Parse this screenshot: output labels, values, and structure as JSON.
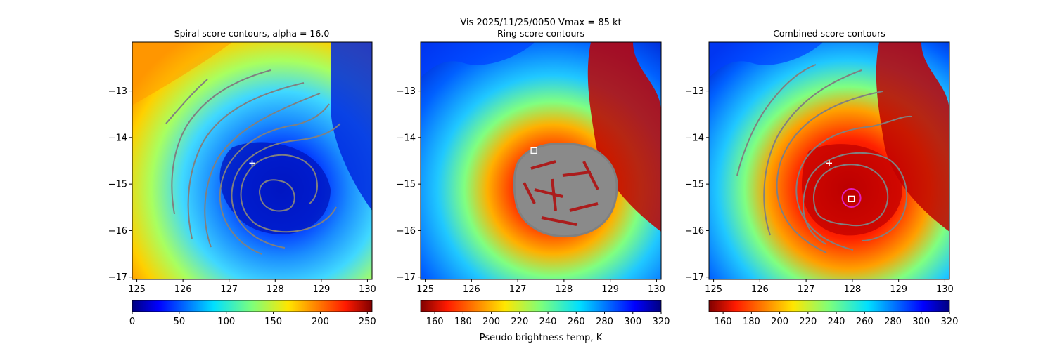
{
  "suptitle": "Vis  2025/11/25/0050    Vmax = 85 kt",
  "colorbar_label": "Pseudo brightness temp, K",
  "chart_data": [
    {
      "type": "heatmap",
      "title": "Spiral score contours, alpha = 16.0",
      "xlim": [
        124.9,
        130.1
      ],
      "ylim": [
        -17.05,
        -11.95
      ],
      "xticks": [
        "125",
        "126",
        "127",
        "128",
        "129",
        "130"
      ],
      "yticks": [
        "−13",
        "−14",
        "−15",
        "−16",
        "−17"
      ],
      "colorbar": {
        "cmap": "jet",
        "range": [
          0,
          255
        ],
        "ticks": [
          "0",
          "50",
          "100",
          "150",
          "200",
          "250"
        ]
      },
      "markers": [
        {
          "kind": "plus",
          "x": 127.5,
          "y": -14.55,
          "color": "#ffffff"
        }
      ],
      "contour_color": "#808080"
    },
    {
      "type": "heatmap",
      "title": "Ring score contours",
      "xlim": [
        124.9,
        130.1
      ],
      "ylim": [
        -17.05,
        -11.95
      ],
      "xticks": [
        "125",
        "126",
        "127",
        "128",
        "129",
        "130"
      ],
      "yticks": [
        "−13",
        "−14",
        "−15",
        "−16",
        "−17"
      ],
      "colorbar": {
        "cmap": "jet_r",
        "range": [
          150,
          320
        ],
        "ticks": [
          "160",
          "180",
          "200",
          "220",
          "240",
          "260",
          "280",
          "300",
          "320"
        ]
      },
      "markers": [
        {
          "kind": "square",
          "x": 127.35,
          "y": -14.28,
          "color": "#ffffff"
        }
      ],
      "contour_color": "#808080"
    },
    {
      "type": "heatmap",
      "title": "Combined score contours",
      "xlim": [
        124.9,
        130.1
      ],
      "ylim": [
        -17.05,
        -11.95
      ],
      "xticks": [
        "125",
        "126",
        "127",
        "128",
        "129",
        "130"
      ],
      "yticks": [
        "−13",
        "−14",
        "−15",
        "−16",
        "−17"
      ],
      "colorbar": {
        "cmap": "jet_r",
        "range": [
          150,
          320
        ],
        "ticks": [
          "160",
          "180",
          "200",
          "220",
          "240",
          "260",
          "280",
          "300",
          "320"
        ]
      },
      "markers": [
        {
          "kind": "plus",
          "x": 127.5,
          "y": -14.55,
          "color": "#ffffff"
        },
        {
          "kind": "square",
          "x": 127.98,
          "y": -15.32,
          "color": "#ffffff"
        },
        {
          "kind": "circle",
          "x": 127.98,
          "y": -15.3,
          "color": "#e020c0"
        }
      ],
      "contour_color": "#808080"
    }
  ]
}
